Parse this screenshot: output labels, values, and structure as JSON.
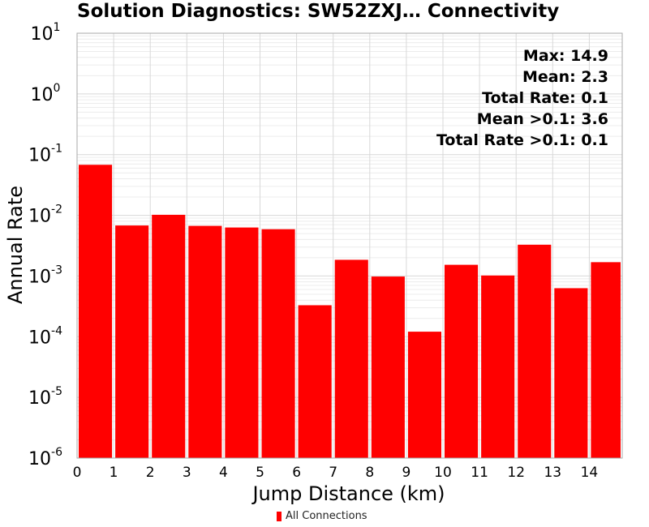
{
  "chart_data": {
    "type": "bar",
    "title": "Solution Diagnostics: SW52ZXJ… Connectivity",
    "xlabel": "Jump Distance (km)",
    "ylabel": "Annual Rate",
    "yscale": "log",
    "ylim": [
      1e-06,
      10
    ],
    "xlim": [
      0,
      14.9
    ],
    "y_ticks": [
      "-6",
      "-5",
      "-4",
      "-3",
      "-2",
      "-1",
      "0",
      "1"
    ],
    "x_ticks": [
      "0",
      "1",
      "2",
      "3",
      "4",
      "5",
      "6",
      "7",
      "8",
      "9",
      "10",
      "11",
      "12",
      "13",
      "14"
    ],
    "grid": true,
    "legend_position": "bottom",
    "series": [
      {
        "name": "All Connections",
        "color": "#ff0000",
        "bins": [
          [
            0,
            1
          ],
          [
            1,
            2
          ],
          [
            2,
            3
          ],
          [
            3,
            4
          ],
          [
            4,
            5
          ],
          [
            5,
            6
          ],
          [
            6,
            7
          ],
          [
            7,
            8
          ],
          [
            8,
            9
          ],
          [
            9,
            10
          ],
          [
            10,
            11
          ],
          [
            11,
            12
          ],
          [
            12,
            13
          ],
          [
            13,
            14
          ],
          [
            14,
            14.9
          ]
        ],
        "values": [
          0.068,
          0.0068,
          0.0102,
          0.0067,
          0.0063,
          0.0059,
          0.00033,
          0.00185,
          0.00098,
          0.000121,
          0.00153,
          0.00102,
          0.00328,
          0.00063,
          0.00169
        ]
      }
    ],
    "annotations": [
      "Max: 14.9",
      "Mean: 2.3",
      "Total Rate: 0.1",
      "Mean >0.1: 3.6",
      "Total Rate >0.1: 0.1"
    ]
  }
}
